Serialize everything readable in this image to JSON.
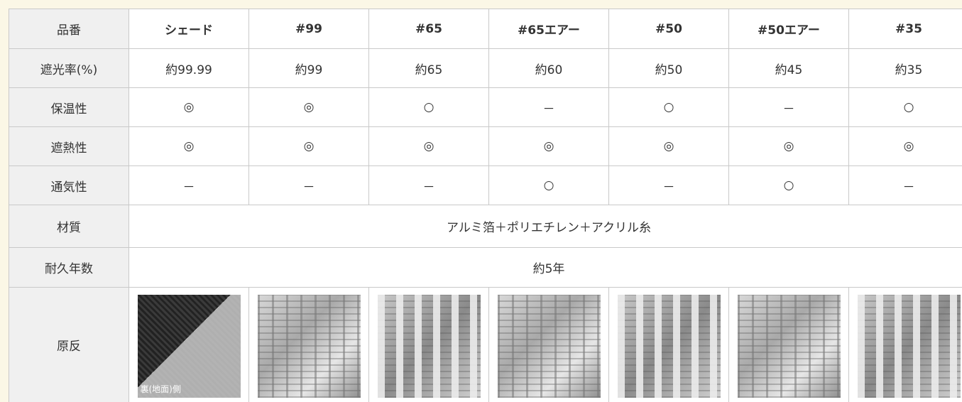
{
  "table": {
    "header": [
      "品番",
      "シェード",
      "#99",
      "#65",
      "#65エアー",
      "#50",
      "#50エアー",
      "#35"
    ],
    "rows": [
      {
        "label": "遮光率(%)",
        "cells": [
          "約99.99",
          "約99",
          "約65",
          "約60",
          "約50",
          "約45",
          "約35"
        ]
      },
      {
        "label": "保温性",
        "cells": [
          "◎",
          "◎",
          "○",
          "－",
          "○",
          "－",
          "○"
        ]
      },
      {
        "label": "遮熱性",
        "cells": [
          "◎",
          "◎",
          "◎",
          "◎",
          "◎",
          "◎",
          "◎"
        ]
      },
      {
        "label": "通気性",
        "cells": [
          "－",
          "－",
          "－",
          "○",
          "－",
          "○",
          "－"
        ]
      },
      {
        "label": "材質",
        "cells": [
          "アルミ箔＋ポリエチレン＋アクリル糸"
        ]
      },
      {
        "label": "耐久年数",
        "cells": [
          "約5年"
        ]
      }
    ],
    "image_row": {
      "label": "原反",
      "caption": "裏(地面)側"
    }
  }
}
